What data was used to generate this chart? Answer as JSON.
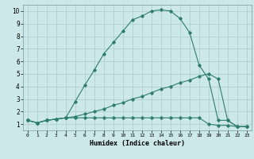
{
  "xlabel": "Humidex (Indice chaleur)",
  "background_color": "#cce8e8",
  "grid_color": "#aacccc",
  "line_color": "#2e7d6e",
  "xlim": [
    -0.5,
    23.5
  ],
  "ylim": [
    0.5,
    10.5
  ],
  "xticks": [
    0,
    1,
    2,
    3,
    4,
    5,
    6,
    7,
    8,
    9,
    10,
    11,
    12,
    13,
    14,
    15,
    16,
    17,
    18,
    19,
    20,
    21,
    22,
    23
  ],
  "yticks": [
    1,
    2,
    3,
    4,
    5,
    6,
    7,
    8,
    9,
    10
  ],
  "series": [
    {
      "x": [
        0,
        1,
        2,
        3,
        4,
        5,
        6,
        7,
        8,
        9,
        10,
        11,
        12,
        13,
        14,
        15,
        16,
        17,
        18,
        19,
        20,
        21,
        22,
        23
      ],
      "y": [
        1.3,
        1.1,
        1.3,
        1.4,
        1.5,
        2.8,
        4.1,
        5.3,
        6.6,
        7.5,
        8.4,
        9.3,
        9.6,
        10.0,
        10.1,
        10.0,
        9.4,
        8.3,
        5.7,
        4.6,
        1.3,
        1.3,
        0.8,
        0.8
      ]
    },
    {
      "x": [
        0,
        1,
        2,
        3,
        4,
        5,
        6,
        7,
        8,
        9,
        10,
        11,
        12,
        13,
        14,
        15,
        16,
        17,
        18,
        19,
        20,
        21,
        22,
        23
      ],
      "y": [
        1.3,
        1.1,
        1.3,
        1.4,
        1.5,
        1.6,
        1.8,
        2.0,
        2.2,
        2.5,
        2.7,
        3.0,
        3.2,
        3.5,
        3.8,
        4.0,
        4.3,
        4.5,
        4.8,
        5.0,
        4.6,
        1.3,
        0.8,
        0.8
      ]
    },
    {
      "x": [
        0,
        1,
        2,
        3,
        4,
        5,
        6,
        7,
        8,
        9,
        10,
        11,
        12,
        13,
        14,
        15,
        16,
        17,
        18,
        19,
        20,
        21,
        22,
        23
      ],
      "y": [
        1.3,
        1.1,
        1.3,
        1.4,
        1.5,
        1.5,
        1.5,
        1.5,
        1.5,
        1.5,
        1.5,
        1.5,
        1.5,
        1.5,
        1.5,
        1.5,
        1.5,
        1.5,
        1.5,
        1.0,
        0.9,
        0.9,
        0.8,
        0.8
      ]
    }
  ]
}
